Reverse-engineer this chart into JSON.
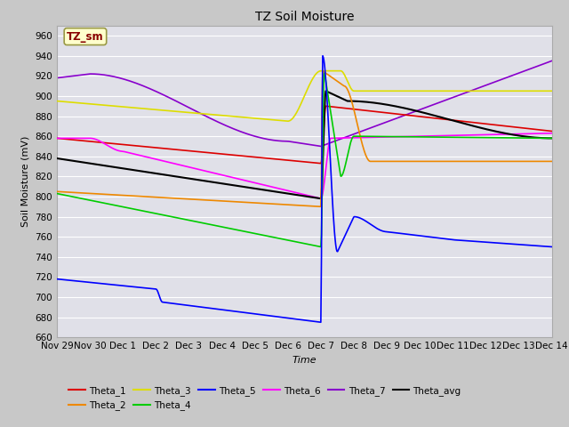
{
  "title": "TZ Soil Moisture",
  "xlabel": "Time",
  "ylabel": "Soil Moisture (mV)",
  "ylim": [
    660,
    970
  ],
  "xlim": [
    0,
    15
  ],
  "yticks": [
    660,
    680,
    700,
    720,
    740,
    760,
    780,
    800,
    820,
    840,
    860,
    880,
    900,
    920,
    940,
    960
  ],
  "fig_bg": "#c8c8c8",
  "plot_bg": "#e0e0e8",
  "grid_color": "#ffffff",
  "series": {
    "Theta_1": {
      "color": "#dd0000",
      "lw": 1.2
    },
    "Theta_2": {
      "color": "#ee8800",
      "lw": 1.2
    },
    "Theta_3": {
      "color": "#dddd00",
      "lw": 1.2
    },
    "Theta_4": {
      "color": "#00cc00",
      "lw": 1.2
    },
    "Theta_5": {
      "color": "#0000ff",
      "lw": 1.2
    },
    "Theta_6": {
      "color": "#ff00ff",
      "lw": 1.2
    },
    "Theta_7": {
      "color": "#8800cc",
      "lw": 1.2
    },
    "Theta_avg": {
      "color": "#000000",
      "lw": 1.5
    }
  },
  "xtick_labels": [
    "Nov 29",
    "Nov 30",
    "Dec 1",
    "Dec 2",
    "Dec 3",
    "Dec 4",
    "Dec 5",
    "Dec 6",
    "Dec 7",
    "Dec 8",
    "Dec 9",
    "Dec 10",
    "Dec 11",
    "Dec 12",
    "Dec 13",
    "Dec 14"
  ],
  "legend_label": "TZ_sm",
  "legend_box_color": "#ffffcc",
  "legend_text_color": "#880000",
  "title_fontsize": 10,
  "axis_fontsize": 8,
  "tick_fontsize": 7.5
}
